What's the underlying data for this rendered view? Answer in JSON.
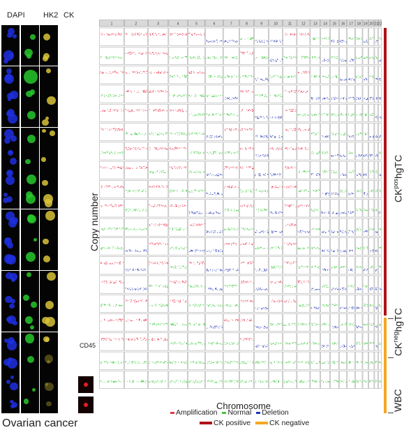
{
  "image_panel": {
    "column_labels": [
      "DAPI",
      "HK2",
      "CK"
    ],
    "extra_label": "CD45",
    "caption": "Ovarian cancer",
    "num_rows": 19
  },
  "plot": {
    "y_label": "Copy number",
    "x_label": "Chromosome",
    "chromosomes": [
      "1",
      "2",
      "3",
      "4",
      "5",
      "6",
      "7",
      "8",
      "9",
      "10",
      "11",
      "12",
      "13",
      "14",
      "15",
      "16",
      "17",
      "18",
      "19",
      "20",
      "21",
      "22"
    ],
    "num_rows": 19
  },
  "legend": {
    "items": [
      {
        "label": "Amplification",
        "color": "#e8384f"
      },
      {
        "label": "Normal",
        "color": "#3ec83e"
      },
      {
        "label": "Deletion",
        "color": "#2236b8"
      }
    ],
    "groups": [
      {
        "label": "CK positive",
        "color": "#b01217"
      },
      {
        "label": "CK negative",
        "color": "#f5a623"
      }
    ]
  },
  "right_labels": {
    "ckpos": {
      "main": "CK",
      "sup": "pos",
      "suffix": "hgTC"
    },
    "ckneg": {
      "main": "CK",
      "sup": "neg",
      "suffix": "hgTC"
    },
    "wbc": "WBC"
  }
}
